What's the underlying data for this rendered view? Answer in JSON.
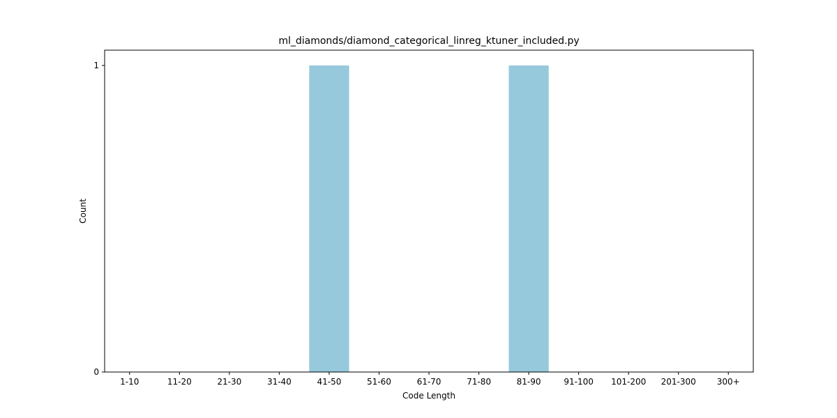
{
  "chart_data": {
    "type": "bar",
    "title": "ml_diamonds/diamond_categorical_linreg_ktuner_included.py",
    "xlabel": "Code Length",
    "ylabel": "Count",
    "categories": [
      "1-10",
      "11-20",
      "21-30",
      "31-40",
      "41-50",
      "51-60",
      "61-70",
      "71-80",
      "81-90",
      "91-100",
      "101-200",
      "201-300",
      "300+"
    ],
    "values": [
      0,
      0,
      0,
      0,
      1,
      0,
      0,
      0,
      1,
      0,
      0,
      0,
      0
    ],
    "ylim": [
      0,
      1.05
    ],
    "yticks": [
      0,
      1
    ],
    "bar_color": "#96c9dc",
    "grid": false
  }
}
